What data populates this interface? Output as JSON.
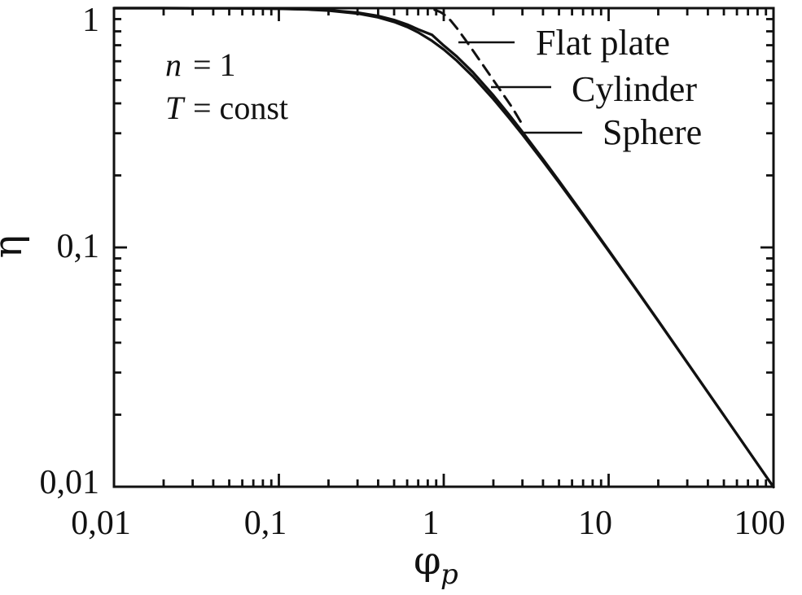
{
  "figure": {
    "background": "#ffffff",
    "ink_color": "#111111"
  },
  "annotation": {
    "line1_var": "n",
    "line1_rest": "=  1",
    "line2_var": "T",
    "line2_rest": "=  const"
  },
  "chart_data": {
    "type": "line",
    "title": "",
    "x_axis": {
      "label_main": "φ",
      "label_sub": "p",
      "scale": "log",
      "range": [
        0.01,
        100
      ],
      "tick_values": [
        0.01,
        0.1,
        1,
        10,
        100
      ],
      "tick_labels": [
        "0,01",
        "0,1",
        "1",
        "10",
        "100"
      ]
    },
    "y_axis": {
      "label": "η",
      "scale": "log",
      "range": [
        0.01,
        1
      ],
      "tick_values": [
        1,
        0.1,
        0.01
      ],
      "tick_labels": [
        "1",
        "0,1",
        "0,01"
      ]
    },
    "grid": false,
    "legend_position": "leader-lines-inside-top-right",
    "series": [
      {
        "name": "Flat plate",
        "style": "dashed",
        "points": [
          [
            0.88,
            0.9839
          ],
          [
            0.95,
            0.9646
          ],
          [
            1,
            0.9439
          ],
          [
            1.1,
            0.8884
          ],
          [
            1.2,
            0.826
          ],
          [
            1.35,
            0.7391
          ],
          [
            1.5,
            0.6662
          ],
          [
            1.7,
            0.5882
          ],
          [
            2,
            0.5
          ],
          [
            2.3,
            0.4348
          ],
          [
            2.6,
            0.3846
          ],
          [
            3,
            0.326
          ]
        ]
      },
      {
        "name": "Cylinder",
        "style": "solid",
        "points": [
          [
            0.01,
            0.99995
          ],
          [
            0.02,
            0.9998
          ],
          [
            0.03,
            0.99955
          ],
          [
            0.05,
            0.99875
          ],
          [
            0.07,
            0.99755
          ],
          [
            0.1,
            0.99503
          ],
          [
            0.15,
            0.98887
          ],
          [
            0.2,
            0.98055
          ],
          [
            0.3,
            0.95751
          ],
          [
            0.4,
            0.92765
          ],
          [
            0.5,
            0.89278
          ],
          [
            0.6,
            0.85462
          ],
          [
            0.7,
            0.81487
          ],
          [
            0.85,
            0.7729
          ],
          [
            1,
            0.69777
          ],
          [
            1.2,
            0.62806
          ],
          [
            1.5,
            0.54001
          ],
          [
            2,
            0.43177
          ],
          [
            2.5,
            0.35736
          ],
          [
            3,
            0.30413
          ],
          [
            4,
            0.23379
          ],
          [
            5,
            0.18972
          ],
          [
            7,
            0.1377
          ],
          [
            10,
            0.09748
          ],
          [
            15,
            0.06555
          ],
          [
            20,
            0.04938
          ],
          [
            30,
            0.03305
          ],
          [
            50,
            0.0199
          ],
          [
            70,
            0.01423
          ],
          [
            100,
            0.00997
          ]
        ]
      },
      {
        "name": "Sphere",
        "style": "solid",
        "points": [
          [
            0.01,
            0.99994
          ],
          [
            0.02,
            0.99976
          ],
          [
            0.03,
            0.99946
          ],
          [
            0.05,
            0.9985
          ],
          [
            0.07,
            0.99707
          ],
          [
            0.1,
            0.99405
          ],
          [
            0.15,
            0.98668
          ],
          [
            0.2,
            0.97682
          ],
          [
            0.3,
            0.94987
          ],
          [
            0.4,
            0.91549
          ],
          [
            0.5,
            0.87625
          ],
          [
            0.6,
            0.83437
          ],
          [
            0.7,
            0.7918
          ],
          [
            0.85,
            0.72945
          ],
          [
            1,
            0.67164
          ],
          [
            1.2,
            0.6031
          ],
          [
            1.5,
            0.51868
          ],
          [
            2,
            0.41667
          ],
          [
            2.5,
            0.34667
          ],
          [
            3,
            0.2963
          ],
          [
            4,
            0.22917
          ],
          [
            5,
            0.18667
          ],
          [
            7,
            0.13605
          ],
          [
            10,
            0.09667
          ],
          [
            15,
            0.06519
          ],
          [
            20,
            0.04917
          ],
          [
            30,
            0.03296
          ],
          [
            50,
            0.01987
          ],
          [
            70,
            0.01422
          ],
          [
            100,
            0.00997
          ]
        ]
      }
    ]
  }
}
